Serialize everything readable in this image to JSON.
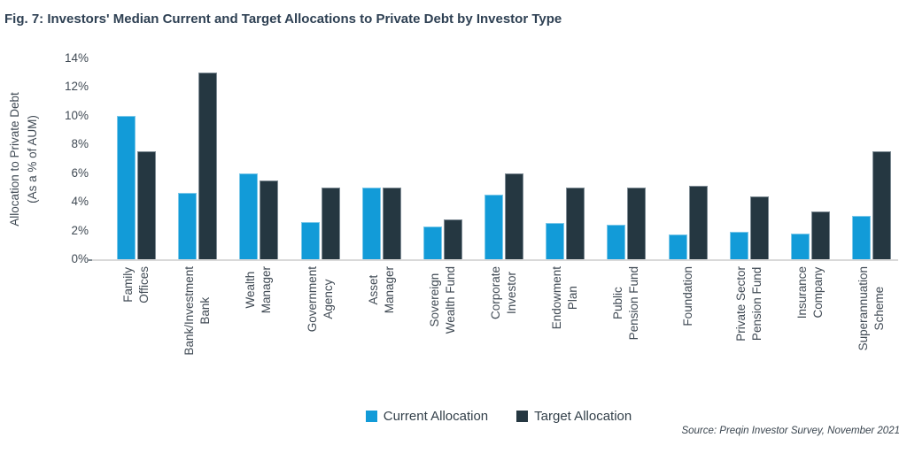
{
  "figure": {
    "title": "Fig. 7: Investors' Median Current and Target Allocations to Private Debt by Investor Type",
    "source": "Source: Preqin Investor Survey, November 2021"
  },
  "chart_data": {
    "type": "bar",
    "title": "Fig. 7: Investors' Median Current and Target Allocations to Private Debt by Investor Type",
    "ylabel": "Allocation to Private Debt (As a % of AUM)",
    "ylabel_lines": [
      "Allocation to Private Debt",
      "(As a % of AUM)"
    ],
    "xlabel": "",
    "ylim": [
      0,
      14
    ],
    "yticks": [
      0,
      2,
      4,
      6,
      8,
      10,
      12,
      14
    ],
    "ytick_suffix": "%",
    "grid": false,
    "legend_position": "bottom",
    "categories": [
      "Family Offices",
      "Bank/Investment Bank",
      "Wealth Manager",
      "Government Agency",
      "Asset Manager",
      "Sovereign Wealth Fund",
      "Corporate Investor",
      "Endowment Plan",
      "Public Pension Fund",
      "Foundation",
      "Private Sector Pension Fund",
      "Insurance Company",
      "Superannuation Scheme"
    ],
    "category_label_lines": [
      [
        "Family",
        "Offices"
      ],
      [
        "Bank/Investment",
        "Bank"
      ],
      [
        "Wealth",
        "Manager"
      ],
      [
        "Government",
        "Agency"
      ],
      [
        "Asset",
        "Manager"
      ],
      [
        "Sovereign",
        "Wealth Fund"
      ],
      [
        "Corporate",
        "Investor"
      ],
      [
        "Endowment",
        "Plan"
      ],
      [
        "Public",
        "Pension Fund"
      ],
      [
        "Foundation"
      ],
      [
        "Private Sector",
        "Pension Fund"
      ],
      [
        "Insurance",
        "Company"
      ],
      [
        "Superannuation",
        "Scheme"
      ]
    ],
    "series": [
      {
        "name": "Current Allocation",
        "color": "#129bd8",
        "values": [
          10.0,
          4.6,
          6.0,
          2.6,
          5.0,
          2.3,
          4.5,
          2.5,
          2.4,
          1.7,
          1.9,
          1.8,
          3.0
        ]
      },
      {
        "name": "Target Allocation",
        "color": "#253741",
        "values": [
          7.5,
          13.0,
          5.5,
          5.0,
          5.0,
          2.8,
          6.0,
          5.0,
          5.0,
          5.1,
          4.4,
          3.3,
          7.5
        ]
      }
    ]
  },
  "colors": {
    "current": "#129bd8",
    "target": "#253741",
    "title_text": "#2e4053",
    "axis_text": "#404a54",
    "baseline": "#d9d9d9",
    "background": "#ffffff"
  }
}
